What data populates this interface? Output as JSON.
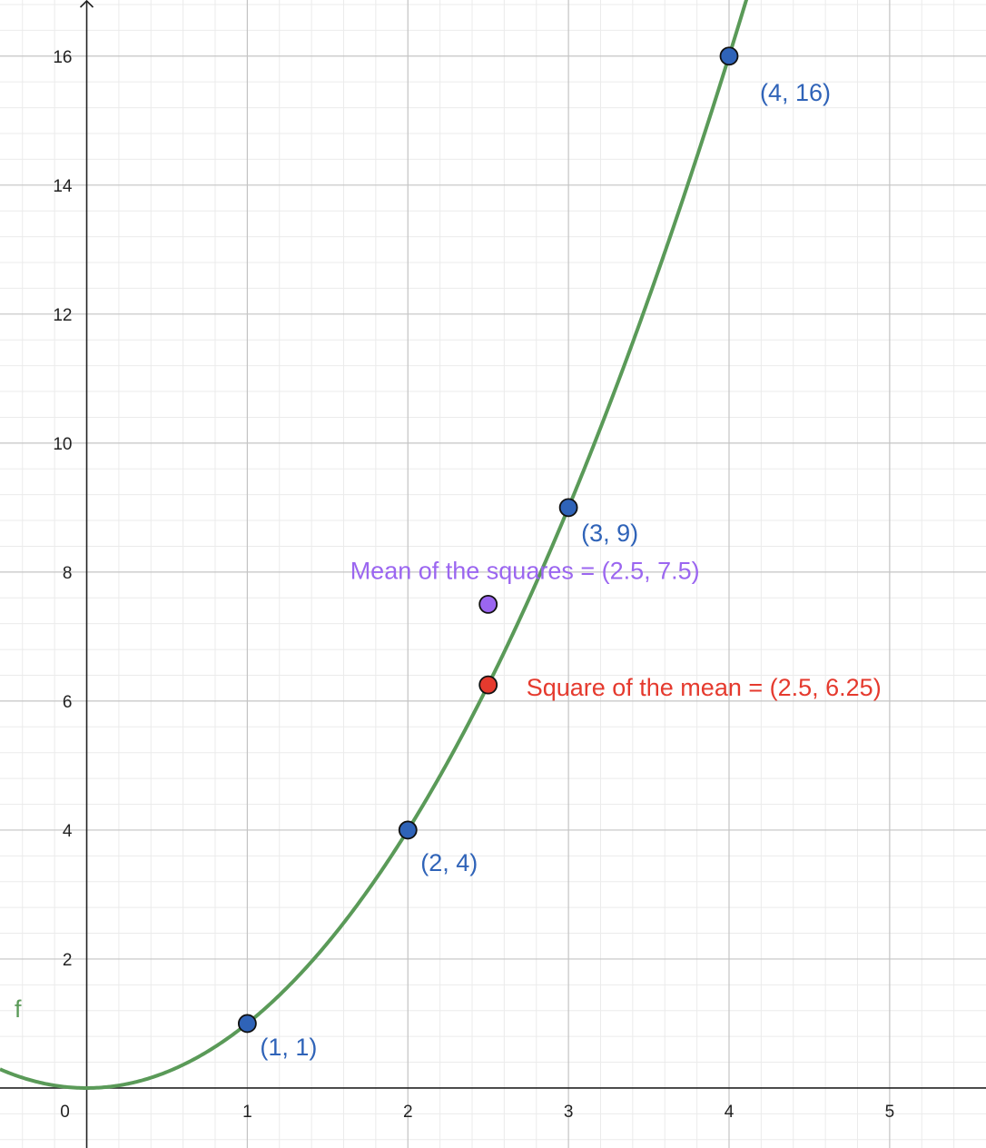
{
  "chart_data": {
    "type": "scatter",
    "function": {
      "name": "f",
      "expression": "x^2",
      "color": "#5a9a58"
    },
    "xlim": [
      -0.54,
      5.6
    ],
    "ylim": [
      -0.93,
      16.87
    ],
    "grid": true,
    "x_ticks": [
      {
        "value": 0,
        "label": "0"
      },
      {
        "value": 1,
        "label": "1"
      },
      {
        "value": 2,
        "label": "2"
      },
      {
        "value": 3,
        "label": "3"
      },
      {
        "value": 4,
        "label": "4"
      },
      {
        "value": 5,
        "label": "5"
      }
    ],
    "y_ticks": [
      {
        "value": 2,
        "label": "2"
      },
      {
        "value": 4,
        "label": "4"
      },
      {
        "value": 6,
        "label": "6"
      },
      {
        "value": 8,
        "label": "8"
      },
      {
        "value": 10,
        "label": "10"
      },
      {
        "value": 12,
        "label": "12"
      },
      {
        "value": 14,
        "label": "14"
      },
      {
        "value": 16,
        "label": "16"
      }
    ],
    "points": [
      {
        "x": 1,
        "y": 1,
        "label": "(1, 1)",
        "color": "#2f63b8",
        "label_color": "#2f63b8"
      },
      {
        "x": 2,
        "y": 4,
        "label": "(2, 4)",
        "color": "#2f63b8",
        "label_color": "#2f63b8"
      },
      {
        "x": 3,
        "y": 9,
        "label": "(3, 9)",
        "color": "#2f63b8",
        "label_color": "#2f63b8"
      },
      {
        "x": 4,
        "y": 16,
        "label": "(4, 16)",
        "color": "#2f63b8",
        "label_color": "#2f63b8"
      },
      {
        "x": 2.5,
        "y": 7.5,
        "label": "Mean of the squares = (2.5, 7.5)",
        "color": "#9b66f0",
        "label_color": "#9b66f0"
      },
      {
        "x": 2.5,
        "y": 6.25,
        "label": "Square of the mean = (2.5, 6.25)",
        "color": "#e53a2e",
        "label_color": "#e53a2e"
      }
    ]
  }
}
